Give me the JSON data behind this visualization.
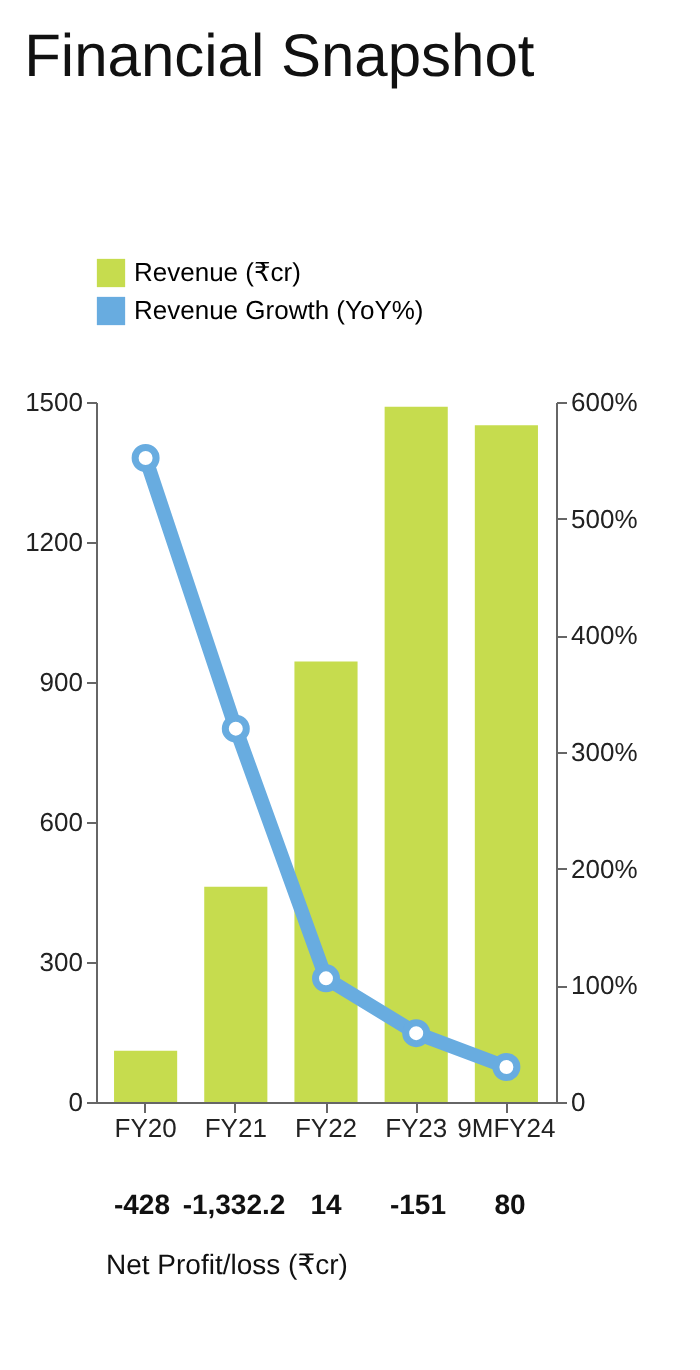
{
  "chart_data": {
    "type": "bar",
    "title": "Financial Snapshot",
    "categories": [
      "FY20",
      "FY21",
      "FY22",
      "FY23",
      "9MFY24"
    ],
    "series": [
      {
        "name": "Revenue (₹cr)",
        "color": "#c6dc4e",
        "values": [
          110,
          461,
          944,
          1490,
          1450
        ]
      },
      {
        "name": "Revenue Growth (YoY%)",
        "type": "line",
        "axis": "y2",
        "color": "#68ace0",
        "values": [
          552,
          320,
          106,
          59,
          30
        ]
      }
    ],
    "ylim": [
      0,
      1500
    ],
    "yticks": [
      0,
      300,
      600,
      900,
      1200,
      1500
    ],
    "y2lim": [
      0,
      600
    ],
    "y2ticks": [
      0,
      {
        "value": 100,
        "label": "100%"
      },
      {
        "value": 200,
        "label": "200%"
      },
      {
        "value": 300,
        "label": "300%"
      },
      {
        "value": 400,
        "label": "400%"
      },
      {
        "value": 500,
        "label": "500%"
      },
      {
        "value": 600,
        "label": "600%"
      }
    ],
    "marker": "circle",
    "legend": "top left",
    "grid": false,
    "annotations": [
      "-428",
      "-1,332.2",
      "14",
      "-151",
      "80",
      "Net Profit/loss (₹cr)"
    ]
  }
}
